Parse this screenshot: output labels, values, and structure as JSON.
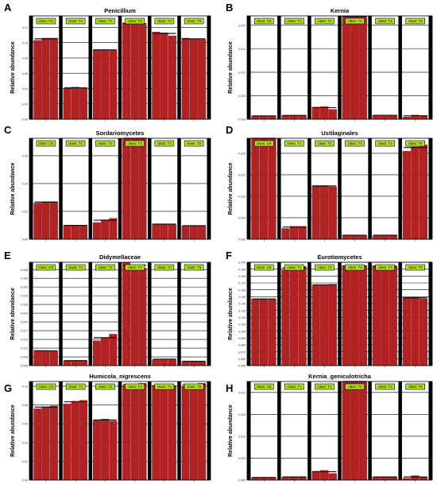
{
  "figure": {
    "colors": {
      "bar": "#b22222",
      "bar_edge": "#7a0d0d",
      "separator": "#000000",
      "tag_fill": "#b5e61d",
      "tag_edge": "#000000",
      "grid": "#000000"
    }
  },
  "chart_data": [
    {
      "panel_label": "A",
      "type": "bar",
      "title": "Penicillium",
      "ylabel": "Relative abundance",
      "ylim": [
        0,
        0.135
      ],
      "yticks": [
        0,
        0.02,
        0.04,
        0.06,
        0.08,
        0.1,
        0.12
      ],
      "ytick_labels": [
        "0.00",
        "0.02",
        "0.04",
        "0.06",
        "0.08",
        "0.10",
        "0.12"
      ],
      "grid": true,
      "groups": [
        {
          "label": "class: CK",
          "values": [
            0.103,
            0.106,
            0.106
          ]
        },
        {
          "label": "class: T1",
          "values": [
            0.04,
            0.042,
            0.041
          ]
        },
        {
          "label": "class: T2",
          "values": [
            0.091,
            0.091,
            0.09
          ]
        },
        {
          "label": "class: T3",
          "values": [
            0.126,
            0.125,
            0.124
          ]
        },
        {
          "label": "class: T4",
          "values": [
            0.114,
            0.113,
            0.109
          ]
        },
        {
          "label": "class: T5",
          "values": [
            0.106,
            0.105,
            0.104
          ]
        }
      ]
    },
    {
      "panel_label": "B",
      "type": "bar",
      "title": "Kernia",
      "ylabel": "Relative abundance",
      "ylim": [
        0,
        0.022
      ],
      "yticks": [
        0,
        0.005,
        0.01,
        0.015,
        0.02
      ],
      "ytick_labels": [
        "0.000",
        "0.005",
        "0.010",
        "0.015",
        "0.020"
      ],
      "grid": true,
      "groups": [
        {
          "label": "class: CK",
          "values": [
            0.0007,
            0.0007,
            0.0007
          ]
        },
        {
          "label": "class: T1",
          "values": [
            0.0008,
            0.0008,
            0.0008
          ]
        },
        {
          "label": "class: T2",
          "values": [
            0.0026,
            0.0027,
            0.0021
          ]
        },
        {
          "label": "class: T3",
          "values": [
            0.022,
            0.0218,
            0.0219
          ]
        },
        {
          "label": "class: T4",
          "values": [
            0.0008,
            0.0009,
            0.0008
          ]
        },
        {
          "label": "class: T5",
          "values": [
            0.0005,
            0.0009,
            0.0008
          ]
        }
      ]
    },
    {
      "panel_label": "C",
      "type": "bar",
      "title": "Sordariomycetes",
      "ylabel": "Relative abundance",
      "ylim": [
        0,
        0.0725
      ],
      "yticks": [
        0,
        0.02,
        0.04,
        0.06
      ],
      "ytick_labels": [
        "0.00",
        "0.02",
        "0.04",
        "0.06"
      ],
      "grid": true,
      "groups": [
        {
          "label": "class: CK",
          "values": [
            0.026,
            0.027,
            0.027
          ]
        },
        {
          "label": "class: T1",
          "values": [
            0.01,
            0.01,
            0.0098
          ]
        },
        {
          "label": "class: T2",
          "values": [
            0.012,
            0.014,
            0.015
          ]
        },
        {
          "label": "class: T3",
          "values": [
            0.0725,
            0.0725,
            0.0725
          ]
        },
        {
          "label": "class: T4",
          "values": [
            0.011,
            0.011,
            0.0105
          ]
        },
        {
          "label": "class: T5",
          "values": [
            0.0095,
            0.0098,
            0.0098
          ]
        }
      ]
    },
    {
      "panel_label": "D",
      "type": "bar",
      "title": "Ustilaginales",
      "ylabel": "Relative abundance",
      "ylim": [
        0,
        0.0235
      ],
      "yticks": [
        0,
        0.005,
        0.01,
        0.015,
        0.02
      ],
      "ytick_labels": [
        "0.000",
        "0.005",
        "0.010",
        "0.015",
        "0.020"
      ],
      "grid": true,
      "groups": [
        {
          "label": "class: CK",
          "values": [
            0.0235,
            0.0235,
            0.0235
          ]
        },
        {
          "label": "class: T1",
          "values": [
            0.0025,
            0.003,
            0.003
          ]
        },
        {
          "label": "class: T2",
          "values": [
            0.0125,
            0.0125,
            0.0122
          ]
        },
        {
          "label": "class: T3",
          "values": [
            0.001,
            0.001,
            0.0008
          ]
        },
        {
          "label": "class: T4",
          "values": [
            0.0008,
            0.001,
            0.001
          ]
        },
        {
          "label": "class: T5",
          "values": [
            0.0205,
            0.0215,
            0.022
          ]
        }
      ]
    },
    {
      "panel_label": "E",
      "type": "bar",
      "title": "Didymellaceae",
      "ylabel": "Relative abundance",
      "ylim": [
        0.005,
        0.0405
      ],
      "yticks": [
        0.005,
        0.008,
        0.011,
        0.014,
        0.017,
        0.02,
        0.023,
        0.026,
        0.029,
        0.032,
        0.035,
        0.038
      ],
      "ytick_labels": [
        "0.005",
        "0.008",
        "0.011",
        "0.014",
        "0.017",
        "0.020",
        "0.023",
        "0.026",
        "0.029",
        "0.032",
        "0.035",
        "0.038"
      ],
      "grid": true,
      "groups": [
        {
          "label": "class: CK",
          "values": [
            0.0102,
            0.0101,
            0.01
          ]
        },
        {
          "label": "class: T1",
          "values": [
            0.0067,
            0.0067,
            0.0067
          ]
        },
        {
          "label": "class: T2",
          "values": [
            0.0135,
            0.0145,
            0.0158
          ]
        },
        {
          "label": "class: T3",
          "values": [
            0.0405,
            0.0395,
            0.0385
          ]
        },
        {
          "label": "class: T4",
          "values": [
            0.007,
            0.0073,
            0.0073
          ]
        },
        {
          "label": "class: T5",
          "values": [
            0.0065,
            0.0065,
            0.0064
          ]
        }
      ]
    },
    {
      "panel_label": "F",
      "type": "bar",
      "title": "Eurotiomycetes",
      "ylabel": "Relative abundance",
      "ylim": [
        0.055,
        0.205
      ],
      "yticks": [
        0.055,
        0.065,
        0.075,
        0.085,
        0.095,
        0.105,
        0.115,
        0.125,
        0.135,
        0.145,
        0.155,
        0.165,
        0.175,
        0.185,
        0.195,
        0.205
      ],
      "ytick_labels": [
        "0.055",
        "0.065",
        "0.075",
        "0.085",
        "0.095",
        "0.105",
        "0.115",
        "0.125",
        "0.135",
        "0.145",
        "0.155",
        "0.165",
        "0.175",
        "0.185",
        "0.195",
        "0.205"
      ],
      "grid": true,
      "groups": [
        {
          "label": "class: CK",
          "values": [
            0.152,
            0.152,
            0.151
          ]
        },
        {
          "label": "class: T1",
          "values": [
            0.194,
            0.198,
            0.199
          ]
        },
        {
          "label": "class: T2",
          "values": [
            0.172,
            0.172,
            0.173
          ]
        },
        {
          "label": "class: T3",
          "values": [
            0.2,
            0.199,
            0.2
          ]
        },
        {
          "label": "class: T4",
          "values": [
            0.2,
            0.199,
            0.199
          ]
        },
        {
          "label": "class: T5",
          "values": [
            0.154,
            0.154,
            0.152
          ]
        }
      ]
    },
    {
      "panel_label": "G",
      "type": "bar",
      "title": "Humicola_nigrescens",
      "ylabel": "Relative abundance",
      "ylim": [
        0,
        0.105
      ],
      "yticks": [
        0,
        0.02,
        0.04,
        0.06,
        0.08,
        0.1
      ],
      "ytick_labels": [
        "0.00",
        "0.02",
        "0.04",
        "0.06",
        "0.08",
        "0.10"
      ],
      "grid": true,
      "groups": [
        {
          "label": "class: CK",
          "values": [
            0.076,
            0.078,
            0.079
          ]
        },
        {
          "label": "class: T1",
          "values": [
            0.081,
            0.084,
            0.085
          ]
        },
        {
          "label": "class: T2",
          "values": [
            0.064,
            0.065,
            0.063
          ]
        },
        {
          "label": "class: T3",
          "values": [
            0.101,
            0.102,
            0.103
          ]
        },
        {
          "label": "class: T4",
          "values": [
            0.101,
            0.1,
            0.1
          ]
        },
        {
          "label": "class: T5",
          "values": [
            0.1,
            0.102,
            0.103
          ]
        }
      ]
    },
    {
      "panel_label": "H",
      "type": "bar",
      "title": "Kernia_geniculotricha",
      "ylabel": "Relative abundance",
      "ylim": [
        0,
        0.0225
      ],
      "yticks": [
        0,
        0.005,
        0.01,
        0.015,
        0.02
      ],
      "ytick_labels": [
        "0.000",
        "0.005",
        "0.010",
        "0.015",
        "0.020"
      ],
      "grid": true,
      "groups": [
        {
          "label": "class: CK",
          "values": [
            0.0006,
            0.0006,
            0.0006
          ]
        },
        {
          "label": "class: T1",
          "values": [
            0.0007,
            0.0007,
            0.0007
          ]
        },
        {
          "label": "class: T2",
          "values": [
            0.002,
            0.0022,
            0.0015
          ]
        },
        {
          "label": "class: T3",
          "values": [
            0.0225,
            0.0225,
            0.0225
          ]
        },
        {
          "label": "class: T4",
          "values": [
            0.0007,
            0.0007,
            0.0007
          ]
        },
        {
          "label": "class: T5",
          "values": [
            0.0004,
            0.001,
            0.0007
          ]
        }
      ]
    }
  ]
}
